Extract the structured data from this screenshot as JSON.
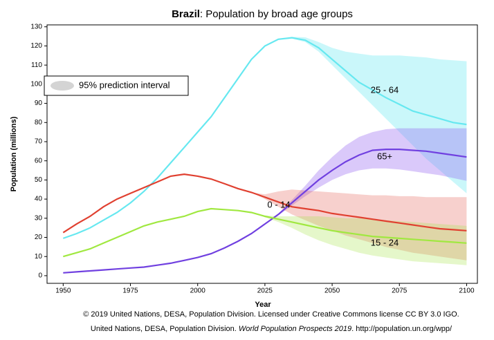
{
  "chart_data": {
    "type": "line",
    "title_bold": "Brazil",
    "title": ": Population by broad age groups",
    "x_label": "Year",
    "y_label": "Population (millions)",
    "interval_label": "95% prediction interval",
    "interval_color": "#d4d4d4",
    "legend": "upper left",
    "footer_line1": "© 2019 United Nations, DESA, Population Division. Licensed under Creative Commons license CC BY 3.0 IGO.",
    "footer_line2": [
      "United Nations, DESA, Population Division. ",
      "World Population Prospects 2019",
      ". http://population.un.org/wpp/"
    ],
    "xlim": [
      1944,
      2104
    ],
    "ylim": [
      -4,
      131
    ],
    "xticks": [
      1950,
      1975,
      2000,
      2025,
      2050,
      2075,
      2100
    ],
    "yticks": [
      0,
      10,
      20,
      30,
      40,
      50,
      60,
      70,
      80,
      90,
      100,
      110,
      120,
      130
    ],
    "x": [
      1950,
      1955,
      1960,
      1965,
      1970,
      1975,
      1980,
      1985,
      1990,
      1995,
      2000,
      2005,
      2010,
      2015,
      2020,
      2025,
      2030,
      2035,
      2040,
      2045,
      2050,
      2055,
      2060,
      2065,
      2070,
      2075,
      2080,
      2085,
      2090,
      2095,
      2100
    ],
    "series": [
      {
        "name": "25 - 64",
        "color": "#66e8f0",
        "band_color": "rgba(102,232,240,0.35)",
        "values": [
          19.5,
          22,
          25,
          29,
          33,
          38,
          44,
          51,
          59,
          67,
          75,
          83,
          93,
          103,
          113,
          120,
          123.5,
          124.3,
          123,
          119,
          113,
          107,
          101,
          97,
          93,
          89.5,
          86,
          84,
          82,
          80,
          79
        ],
        "lower": [
          null,
          null,
          null,
          null,
          null,
          null,
          null,
          null,
          null,
          null,
          null,
          null,
          null,
          null,
          113,
          120,
          123.5,
          123.8,
          122,
          117,
          110,
          103,
          96,
          89,
          82,
          75,
          68,
          61,
          55,
          49,
          43
        ],
        "upper": [
          null,
          null,
          null,
          null,
          null,
          null,
          null,
          null,
          null,
          null,
          null,
          null,
          null,
          null,
          113,
          120,
          123.5,
          124.8,
          124.5,
          122,
          119,
          117,
          116,
          115,
          115,
          115,
          114.5,
          114,
          113,
          112.5,
          112
        ]
      },
      {
        "name": "65+",
        "color": "#7040e0",
        "band_color": "rgba(150,100,240,0.35)",
        "values": [
          1.5,
          2,
          2.5,
          3,
          3.5,
          4,
          4.5,
          5.5,
          6.5,
          8,
          9.5,
          11.5,
          14.5,
          18,
          22,
          27,
          32,
          38,
          44,
          50,
          55,
          59.5,
          63,
          65.5,
          66,
          66,
          65.5,
          65,
          64,
          63,
          62
        ],
        "lower": [
          null,
          null,
          null,
          null,
          null,
          null,
          null,
          null,
          null,
          null,
          null,
          null,
          null,
          null,
          22,
          27,
          31.5,
          36.5,
          41.5,
          46,
          50,
          53,
          55,
          56,
          56,
          55.5,
          54.5,
          53.5,
          52.5,
          51,
          49.5
        ],
        "upper": [
          null,
          null,
          null,
          null,
          null,
          null,
          null,
          null,
          null,
          null,
          null,
          null,
          null,
          null,
          22,
          27,
          32.5,
          39.5,
          47,
          55,
          62,
          68,
          72.5,
          75,
          76.5,
          77,
          77,
          77,
          77,
          77,
          77
        ]
      },
      {
        "name": "0 - 14",
        "color": "#e04030",
        "band_color": "rgba(230,100,90,0.3)",
        "values": [
          22.5,
          27,
          31,
          36,
          40,
          43,
          46,
          49,
          52,
          53,
          52,
          50.5,
          48,
          45.5,
          43.5,
          41,
          38.5,
          36,
          35,
          34,
          32.5,
          31.5,
          30.5,
          29.5,
          28.5,
          27.5,
          26.5,
          25.5,
          24.5,
          24,
          23.5
        ],
        "lower": [
          null,
          null,
          null,
          null,
          null,
          null,
          null,
          null,
          null,
          null,
          null,
          null,
          null,
          null,
          43.5,
          40,
          36,
          32,
          29,
          26,
          23.5,
          21,
          19,
          17,
          15,
          13.5,
          12,
          11,
          10,
          9,
          8
        ],
        "upper": [
          null,
          null,
          null,
          null,
          null,
          null,
          null,
          null,
          null,
          null,
          null,
          null,
          null,
          null,
          43.5,
          42.5,
          44,
          45,
          44.5,
          44,
          43.5,
          43,
          42.5,
          42,
          42,
          41.5,
          41.5,
          41,
          41,
          41,
          41
        ]
      },
      {
        "name": "15 - 24",
        "color": "#a0e840",
        "band_color": "rgba(170,230,80,0.3)",
        "values": [
          10,
          12,
          14,
          17,
          20,
          23,
          26,
          28,
          29.5,
          31,
          33.5,
          35,
          34.5,
          34,
          33,
          31,
          29.5,
          28,
          26.5,
          25,
          23.5,
          22.5,
          21.5,
          20.5,
          20,
          19.5,
          19,
          18.5,
          18,
          17.5,
          17
        ],
        "lower": [
          null,
          null,
          null,
          null,
          null,
          null,
          null,
          null,
          null,
          null,
          null,
          null,
          null,
          null,
          33,
          30.5,
          28,
          25,
          21.5,
          18.5,
          16,
          14,
          12,
          10.5,
          9.5,
          8.5,
          7.5,
          7,
          6.5,
          6,
          5.5
        ],
        "upper": [
          null,
          null,
          null,
          null,
          null,
          null,
          null,
          null,
          null,
          null,
          null,
          null,
          null,
          null,
          33,
          31.5,
          31,
          31,
          31,
          31,
          30.5,
          30,
          30,
          29.5,
          29,
          28.5,
          28,
          27.5,
          27,
          26.5,
          26
        ]
      }
    ]
  }
}
